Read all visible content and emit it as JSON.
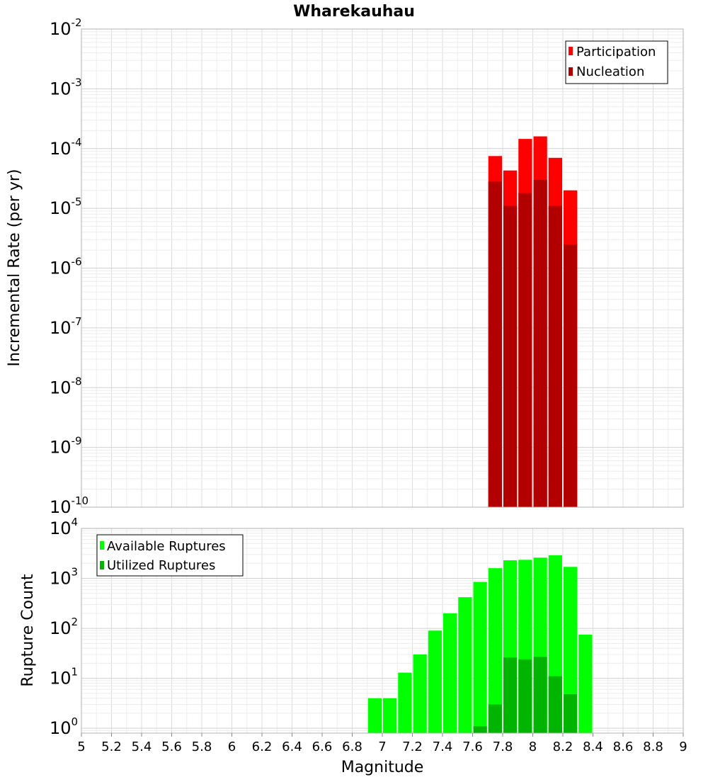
{
  "chart_data": [
    {
      "type": "bar",
      "title": "Wharekauhau",
      "xlabel": "Magnitude",
      "ylabel": "Incremental Rate (per yr)",
      "yscale": "log",
      "xlim": [
        5,
        9
      ],
      "ylim": [
        1e-10,
        0.01
      ],
      "bin_width": 0.1,
      "grid": true,
      "legend_position": "top-right",
      "y_ticks": [
        {
          "base": "10",
          "exp": "-10",
          "value": 1e-10
        },
        {
          "base": "10",
          "exp": "-9",
          "value": 1e-09
        },
        {
          "base": "10",
          "exp": "-8",
          "value": 1e-08
        },
        {
          "base": "10",
          "exp": "-7",
          "value": 1e-07
        },
        {
          "base": "10",
          "exp": "-6",
          "value": 1e-06
        },
        {
          "base": "10",
          "exp": "-5",
          "value": 1e-05
        },
        {
          "base": "10",
          "exp": "-4",
          "value": 0.0001
        },
        {
          "base": "10",
          "exp": "-3",
          "value": 0.001
        },
        {
          "base": "10",
          "exp": "-2",
          "value": 0.01
        }
      ],
      "series": [
        {
          "name": "Participation",
          "color": "#ff0000",
          "x": [
            7.75,
            7.85,
            7.95,
            8.05,
            8.15,
            8.25
          ],
          "values": [
            7.5e-05,
            4.3e-05,
            0.000145,
            0.00016,
            7e-05,
            2e-05
          ]
        },
        {
          "name": "Nucleation",
          "color": "#b20000",
          "x": [
            7.75,
            7.85,
            7.95,
            8.05,
            8.15,
            8.25
          ],
          "values": [
            2.8e-05,
            1.1e-05,
            1.8e-05,
            3e-05,
            1.1e-05,
            2.5e-06
          ]
        }
      ]
    },
    {
      "type": "bar",
      "title": "",
      "xlabel": "Magnitude",
      "ylabel": "Rupture Count",
      "yscale": "log",
      "xlim": [
        5,
        9
      ],
      "ylim": [
        0.8,
        10000
      ],
      "bin_width": 0.1,
      "grid": true,
      "legend_position": "top-left",
      "x_ticks": [
        "5",
        "5.2",
        "5.4",
        "5.6",
        "5.8",
        "6",
        "6.2",
        "6.4",
        "6.6",
        "6.8",
        "7",
        "7.2",
        "7.4",
        "7.6",
        "7.8",
        "8",
        "8.2",
        "8.4",
        "8.6",
        "8.8",
        "9"
      ],
      "y_ticks": [
        {
          "base": "10",
          "exp": "0",
          "value": 1
        },
        {
          "base": "10",
          "exp": "1",
          "value": 10
        },
        {
          "base": "10",
          "exp": "2",
          "value": 100
        },
        {
          "base": "10",
          "exp": "3",
          "value": 1000
        },
        {
          "base": "10",
          "exp": "4",
          "value": 10000
        }
      ],
      "series": [
        {
          "name": "Available Ruptures",
          "color": "#00ff00",
          "x": [
            6.95,
            7.05,
            7.15,
            7.25,
            7.35,
            7.45,
            7.55,
            7.65,
            7.75,
            7.85,
            7.95,
            8.05,
            8.15,
            8.25,
            8.35
          ],
          "values": [
            4,
            4,
            13,
            30,
            90,
            200,
            420,
            850,
            1600,
            2300,
            2350,
            2600,
            2900,
            1700,
            75
          ]
        },
        {
          "name": "Utilized Ruptures",
          "color": "#00b400",
          "x": [
            7.65,
            7.75,
            7.85,
            7.95,
            8.05,
            8.15,
            8.25
          ],
          "values": [
            1.1,
            3,
            26,
            24,
            27,
            11,
            4.8
          ]
        }
      ]
    }
  ]
}
